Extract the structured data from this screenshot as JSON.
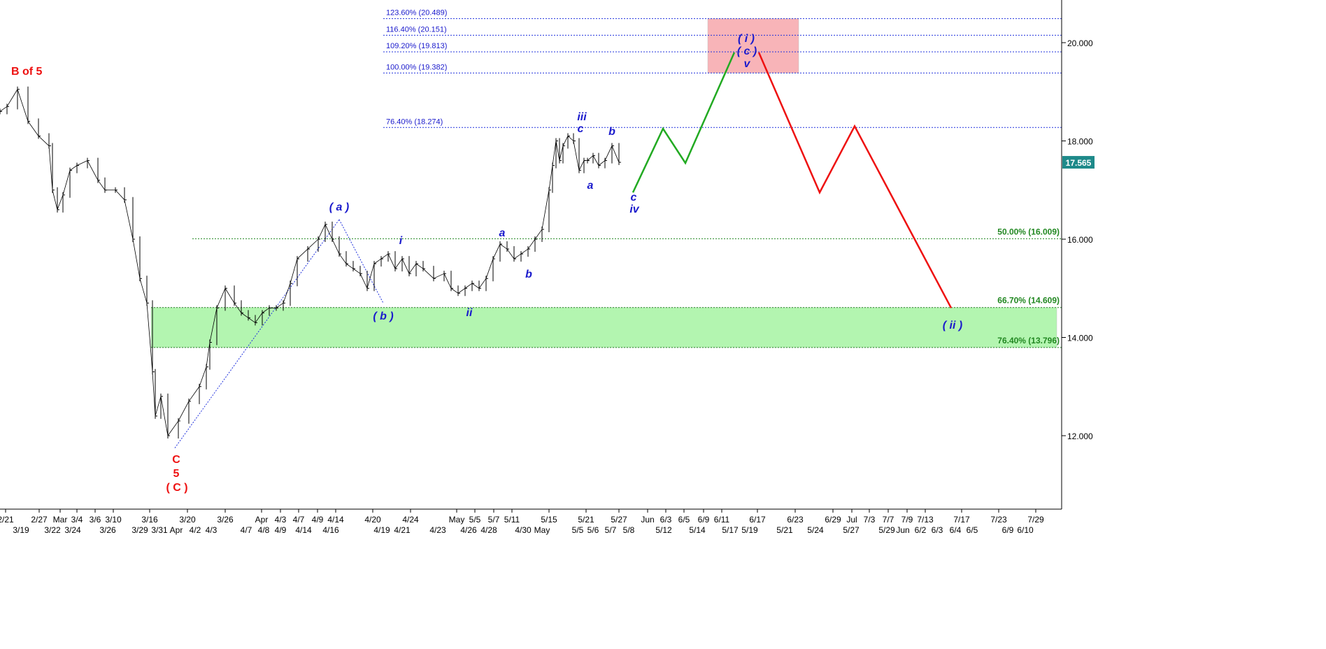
{
  "chart_data": {
    "type": "line",
    "title": "",
    "xlabel": "",
    "ylabel": "",
    "ylim": [
      10.5,
      20.9
    ],
    "y_ticks": [
      "12.000",
      "14.000",
      "16.000",
      "18.000",
      "20.000"
    ],
    "last_price": "17.565",
    "x_axis": {
      "top_row": [
        "2/21",
        "2/27",
        "Mar",
        "3/4",
        "3/6",
        "3/10",
        "3/16",
        "3/20",
        "3/26",
        "Apr",
        "4/3",
        "4/7",
        "4/9",
        "4/14",
        "4/20",
        "4/24",
        "May",
        "5/5",
        "5/7",
        "5/11",
        "5/15",
        "5/21",
        "5/27",
        "Jun",
        "6/3",
        "6/5",
        "6/9",
        "6/11",
        "6/17",
        "6/23",
        "6/29",
        "Jul",
        "7/3",
        "7/7",
        "7/9",
        "7/13",
        "7/17",
        "7/23",
        "7/29"
      ],
      "bottom_row": [
        "3/19",
        "3/22",
        "3/24",
        "3/26",
        "3/29",
        "3/31",
        "Apr",
        "4/2",
        "4/3",
        "4/7",
        "4/8",
        "4/9",
        "4/14",
        "4/16",
        "4/19",
        "4/21",
        "4/23",
        "4/26",
        "4/28",
        "4/30",
        "May",
        "5/5",
        "5/6",
        "5/7",
        "5/8",
        "5/12",
        "5/14",
        "5/17",
        "5/19",
        "5/21",
        "5/24",
        "5/27",
        "5/29",
        "Jun",
        "6/2",
        "6/3",
        "6/4",
        "6/5",
        "6/9",
        "6/10"
      ]
    },
    "fib_levels": [
      {
        "label": "123.60% (20.489)",
        "value": 20.489,
        "group": "extension"
      },
      {
        "label": "116.40% (20.151)",
        "value": 20.151,
        "group": "extension"
      },
      {
        "label": "109.20% (19.813)",
        "value": 19.813,
        "group": "extension"
      },
      {
        "label": "100.00% (19.382)",
        "value": 19.382,
        "group": "extension"
      },
      {
        "label": "76.40% (18.274)",
        "value": 18.274,
        "group": "extension"
      },
      {
        "label": "50.00% (16.009)",
        "value": 16.009,
        "group": "retracement"
      },
      {
        "label": "66.70% (14.609)",
        "value": 14.609,
        "group": "retracement"
      },
      {
        "label": "76.40% (13.796)",
        "value": 13.796,
        "group": "retracement"
      }
    ],
    "zones": [
      {
        "name": "target-zone",
        "y_range": [
          19.382,
          20.489
        ],
        "color": "#f8b4b8"
      },
      {
        "name": "support-zone",
        "y_range": [
          13.796,
          14.609
        ],
        "color": "#b3f5b0"
      }
    ],
    "wave_labels": {
      "b_of_5": "B of 5",
      "c_low": "C",
      "five_low": "5",
      "big_c": "( C )",
      "a_paren": "( a )",
      "b_paren": "( b )",
      "small_i": "i",
      "small_ii": "ii",
      "a1": "a",
      "b1": "b",
      "iii": "iii",
      "c2": "c",
      "a2": "a",
      "b2": "b",
      "c_iv": "c",
      "iv": "iv",
      "i_paren": "( i )",
      "c_paren": "( c )",
      "v": "v",
      "ii_paren": "( ii )"
    },
    "price_series": {
      "name": "",
      "color": "#000000",
      "x": [
        0,
        10,
        25,
        40,
        55,
        70,
        75,
        82,
        90,
        100,
        110,
        125,
        140,
        150,
        165,
        178,
        190,
        200,
        210,
        218,
        222,
        230,
        240,
        255,
        270,
        285,
        295,
        300,
        310,
        322,
        335,
        345,
        355,
        365,
        375,
        385,
        395,
        405,
        415,
        425,
        440,
        455,
        465,
        475,
        485,
        495,
        505,
        515,
        525,
        535,
        545,
        555,
        565,
        575,
        585,
        595,
        605,
        620,
        635,
        645,
        655,
        665,
        675,
        685,
        695,
        705,
        715,
        725,
        735,
        745,
        755,
        765,
        775,
        785,
        790,
        795,
        800,
        805,
        812,
        820,
        828,
        835,
        840,
        848,
        856,
        865,
        875,
        885
      ],
      "y": [
        18.6,
        18.7,
        19.05,
        18.4,
        18.1,
        17.9,
        17.0,
        16.6,
        16.9,
        17.4,
        17.5,
        17.6,
        17.2,
        17.0,
        17.0,
        16.8,
        16.0,
        15.2,
        14.7,
        13.3,
        12.4,
        12.8,
        12.0,
        12.3,
        12.7,
        13.0,
        13.4,
        13.9,
        14.6,
        15.0,
        14.7,
        14.5,
        14.4,
        14.3,
        14.5,
        14.6,
        14.6,
        14.7,
        15.1,
        15.6,
        15.8,
        16.0,
        16.3,
        16.0,
        15.7,
        15.5,
        15.4,
        15.3,
        15.0,
        15.5,
        15.6,
        15.7,
        15.4,
        15.6,
        15.3,
        15.5,
        15.4,
        15.2,
        15.3,
        15.0,
        14.9,
        15.0,
        15.1,
        15.0,
        15.2,
        15.6,
        15.9,
        15.8,
        15.6,
        15.7,
        15.8,
        16.0,
        16.2,
        17.0,
        17.5,
        18.0,
        17.6,
        17.9,
        18.1,
        18.0,
        17.4,
        17.6,
        17.6,
        17.7,
        17.5,
        17.6,
        17.9,
        17.565
      ]
    },
    "projection_green": {
      "color": "#22aa22",
      "x": [
        905,
        948,
        980,
        1050
      ],
      "y": [
        16.95,
        18.25,
        17.55,
        19.8
      ]
    },
    "projection_red": {
      "color": "#ee1111",
      "x": [
        1085,
        1172,
        1222,
        1360
      ],
      "y": [
        19.8,
        16.95,
        18.3,
        14.6
      ]
    },
    "dotted_wave_lines": [
      {
        "x": [
          250,
          485
        ],
        "y": [
          11.75,
          16.4
        ]
      },
      {
        "x": [
          485,
          548
        ],
        "y": [
          16.4,
          14.7
        ]
      }
    ]
  }
}
